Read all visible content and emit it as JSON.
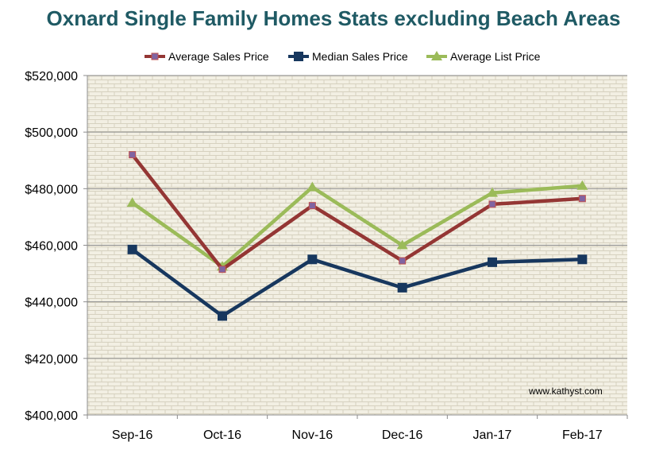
{
  "chart_data": {
    "type": "line",
    "title": "Oxnard Single Family Homes Stats excluding Beach Areas",
    "categories": [
      "Sep-16",
      "Oct-16",
      "Nov-16",
      "Dec-16",
      "Jan-17",
      "Feb-17"
    ],
    "series": [
      {
        "name": "Average Sales Price",
        "color": "#943634",
        "marker": "square-small",
        "marker_color": "#8064a2",
        "values": [
          492000,
          451500,
          474000,
          454500,
          474500,
          476500
        ]
      },
      {
        "name": "Median Sales Price",
        "color": "#17375e",
        "marker": "square",
        "marker_color": "#17375e",
        "values": [
          458500,
          435000,
          455000,
          445000,
          454000,
          455000
        ]
      },
      {
        "name": "Average List Price",
        "color": "#9bbb59",
        "marker": "triangle",
        "marker_color": "#9bbb59",
        "values": [
          475000,
          452500,
          480500,
          460000,
          478500,
          481000
        ]
      }
    ],
    "ylim": [
      400000,
      520000
    ],
    "yticks": [
      400000,
      420000,
      440000,
      460000,
      480000,
      500000,
      520000
    ],
    "ytick_labels": [
      "$400,000",
      "$420,000",
      "$440,000",
      "$460,000",
      "$480,000",
      "$500,000",
      "$520,000"
    ],
    "xlabel": "",
    "ylabel": "",
    "grid": true,
    "legend": "top",
    "background": "brick-pattern",
    "watermark": "www.kathyst.com"
  }
}
